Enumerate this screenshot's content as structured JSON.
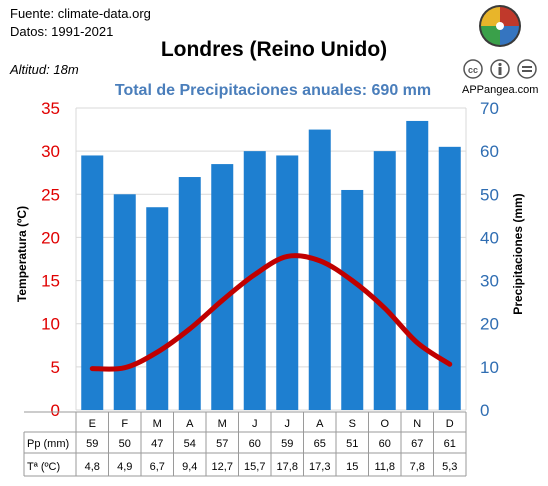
{
  "header": {
    "source": "Fuente: climate-data.org",
    "period": "Datos: 1991-2021",
    "altitude": "Altitud: 18m",
    "brand": "APPangea.com",
    "license_icons": [
      "cc-icon",
      "info-icon",
      "equal-icon"
    ],
    "logo": "appangea-puzzle-logo"
  },
  "chart_data": {
    "type": "bar",
    "title": "Londres (Reino Unido)",
    "subtitle": "Total de Precipitaciones anuales: 690 mm",
    "categories": [
      "E",
      "F",
      "M",
      "A",
      "M",
      "J",
      "J",
      "A",
      "S",
      "O",
      "N",
      "D"
    ],
    "series": [
      {
        "name": "Pp (mm)",
        "type": "bar",
        "axis": "right",
        "color": "#1e7fd0",
        "values": [
          59,
          50,
          47,
          54,
          57,
          60,
          59,
          65,
          51,
          60,
          67,
          61
        ]
      },
      {
        "name": "Tª (ºC)",
        "type": "line",
        "axis": "left",
        "color": "#c00000",
        "values": [
          4.8,
          4.9,
          6.7,
          9.4,
          12.7,
          15.7,
          17.8,
          17.3,
          15,
          11.8,
          7.8,
          5.3
        ]
      }
    ],
    "table_values": {
      "pp": [
        "59",
        "50",
        "47",
        "54",
        "57",
        "60",
        "59",
        "65",
        "51",
        "60",
        "67",
        "61"
      ],
      "temp": [
        "4,8",
        "4,9",
        "6,7",
        "9,4",
        "12,7",
        "15,7",
        "17,8",
        "17,3",
        "15",
        "11,8",
        "7,8",
        "5,3"
      ]
    },
    "ylabel_left": "Temperatura (ºC)",
    "ylabel_right": "Precipitaciones (mm)",
    "ylim_left": [
      0,
      35
    ],
    "ylim_right": [
      0,
      70
    ],
    "yticks_left": [
      "0",
      "5",
      "10",
      "15",
      "20",
      "25",
      "30",
      "35"
    ],
    "yticks_right": [
      "0",
      "10",
      "20",
      "30",
      "40",
      "50",
      "60",
      "70"
    ],
    "grid": true,
    "colors": {
      "left_axis": "#e00000",
      "right_axis": "#2f6db2",
      "subtitle": "#4a7ebb"
    }
  }
}
